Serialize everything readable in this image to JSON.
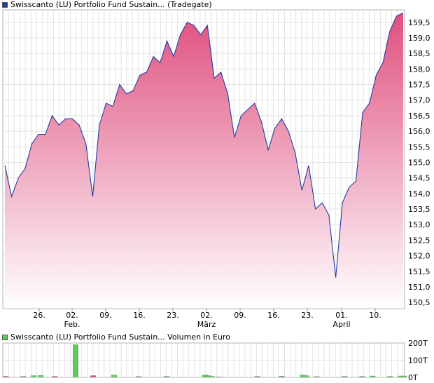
{
  "price_chart": {
    "legend_color": "#1f3ea6",
    "title": "Swisscanto (LU) Portfolio Fund Sustain... (Tradegate)"
  },
  "volume_chart": {
    "legend_color": "#5dcb5d",
    "title": "Swisscanto (LU) Portfolio Fund Sustain... Volumen in Euro"
  },
  "chart_data": [
    {
      "type": "area",
      "title": "Swisscanto (LU) Portfolio Fund Sustain... (Tradegate)",
      "ylim": [
        150.3,
        159.9
      ],
      "y_ticks": [
        "150,5",
        "151,0",
        "151,5",
        "152,0",
        "152,5",
        "153,0",
        "153,5",
        "154,0",
        "154,5",
        "155,0",
        "155,5",
        "156,0",
        "156,5",
        "157,0",
        "157,5",
        "158,0",
        "158,5",
        "159,0",
        "159,5"
      ],
      "x_ticks": [
        {
          "day": "26.",
          "month": ""
        },
        {
          "day": "02.",
          "month": "Feb."
        },
        {
          "day": "09.",
          "month": ""
        },
        {
          "day": "16.",
          "month": ""
        },
        {
          "day": "23.",
          "month": ""
        },
        {
          "day": "02.",
          "month": "März"
        },
        {
          "day": "09.",
          "month": ""
        },
        {
          "day": "16.",
          "month": ""
        },
        {
          "day": "23.",
          "month": ""
        },
        {
          "day": "01.",
          "month": "April"
        },
        {
          "day": "10.",
          "month": ""
        }
      ],
      "line_color": "#1f3ea6",
      "fill_top_color": "#e0507f",
      "values": [
        154.9,
        153.9,
        154.5,
        154.8,
        155.6,
        155.9,
        155.9,
        156.5,
        156.2,
        156.4,
        156.4,
        156.2,
        155.6,
        153.9,
        156.2,
        156.9,
        156.8,
        157.5,
        157.2,
        157.3,
        157.8,
        157.9,
        158.4,
        158.2,
        158.9,
        158.4,
        159.1,
        159.5,
        159.4,
        159.1,
        159.4,
        157.7,
        157.9,
        157.2,
        155.8,
        156.5,
        156.7,
        156.9,
        156.3,
        155.4,
        156.1,
        156.4,
        156.0,
        155.3,
        154.1,
        154.9,
        153.5,
        153.7,
        153.3,
        151.3,
        153.7,
        154.2,
        154.4,
        156.6,
        156.9,
        157.8,
        158.2,
        159.2,
        159.7,
        159.8
      ]
    },
    {
      "type": "bar",
      "title": "Swisscanto (LU) Portfolio Fund Sustain... Volumen in Euro",
      "ylim": [
        0,
        200000
      ],
      "y_ticks": [
        "0T",
        "100T",
        "200T"
      ],
      "up_color": "#5dcb5d",
      "down_color": "#e0505a",
      "values": [
        6000,
        0,
        0,
        0,
        0,
        6000,
        0,
        0,
        10000,
        0,
        12000,
        0,
        0,
        0,
        6000,
        0,
        0,
        0,
        0,
        0,
        190000,
        0,
        0,
        0,
        0,
        10000,
        0,
        0,
        0,
        0,
        0,
        14000,
        0,
        0,
        0,
        0,
        0,
        0,
        5000,
        0,
        0,
        0,
        0,
        0,
        0,
        0,
        6000,
        0,
        0,
        0,
        0,
        0,
        0,
        0,
        0,
        0,
        0,
        14000,
        10000,
        6000,
        0,
        3000,
        0,
        0,
        0,
        0,
        0,
        0,
        0,
        0,
        0,
        0,
        6000,
        0,
        0,
        0,
        0,
        0,
        0,
        7000,
        0,
        0,
        0,
        0,
        0,
        14000,
        10000,
        0,
        0,
        5000,
        0,
        0,
        0,
        0,
        0,
        0,
        0,
        6000,
        0,
        0,
        0,
        0,
        6000,
        0,
        0,
        8000,
        0,
        0,
        0,
        0,
        6000,
        0,
        0,
        8000,
        8000
      ],
      "directions": [
        "d",
        "n",
        "n",
        "n",
        "n",
        "u",
        "n",
        "n",
        "u",
        "n",
        "u",
        "n",
        "n",
        "n",
        "d",
        "n",
        "n",
        "n",
        "n",
        "n",
        "u",
        "n",
        "n",
        "n",
        "n",
        "d",
        "n",
        "n",
        "n",
        "n",
        "n",
        "u",
        "n",
        "n",
        "n",
        "n",
        "n",
        "n",
        "d",
        "n",
        "n",
        "n",
        "n",
        "n",
        "n",
        "n",
        "u",
        "n",
        "n",
        "n",
        "n",
        "n",
        "n",
        "n",
        "n",
        "n",
        "n",
        "u",
        "u",
        "u",
        "n",
        "u",
        "n",
        "n",
        "n",
        "n",
        "n",
        "n",
        "n",
        "n",
        "n",
        "n",
        "u",
        "n",
        "n",
        "n",
        "n",
        "n",
        "n",
        "u",
        "n",
        "n",
        "n",
        "n",
        "n",
        "u",
        "u",
        "n",
        "n",
        "u",
        "n",
        "n",
        "n",
        "n",
        "n",
        "n",
        "n",
        "u",
        "n",
        "n",
        "n",
        "n",
        "u",
        "n",
        "n",
        "u",
        "n",
        "n",
        "n",
        "n",
        "u",
        "n",
        "n",
        "u",
        "u"
      ]
    }
  ]
}
